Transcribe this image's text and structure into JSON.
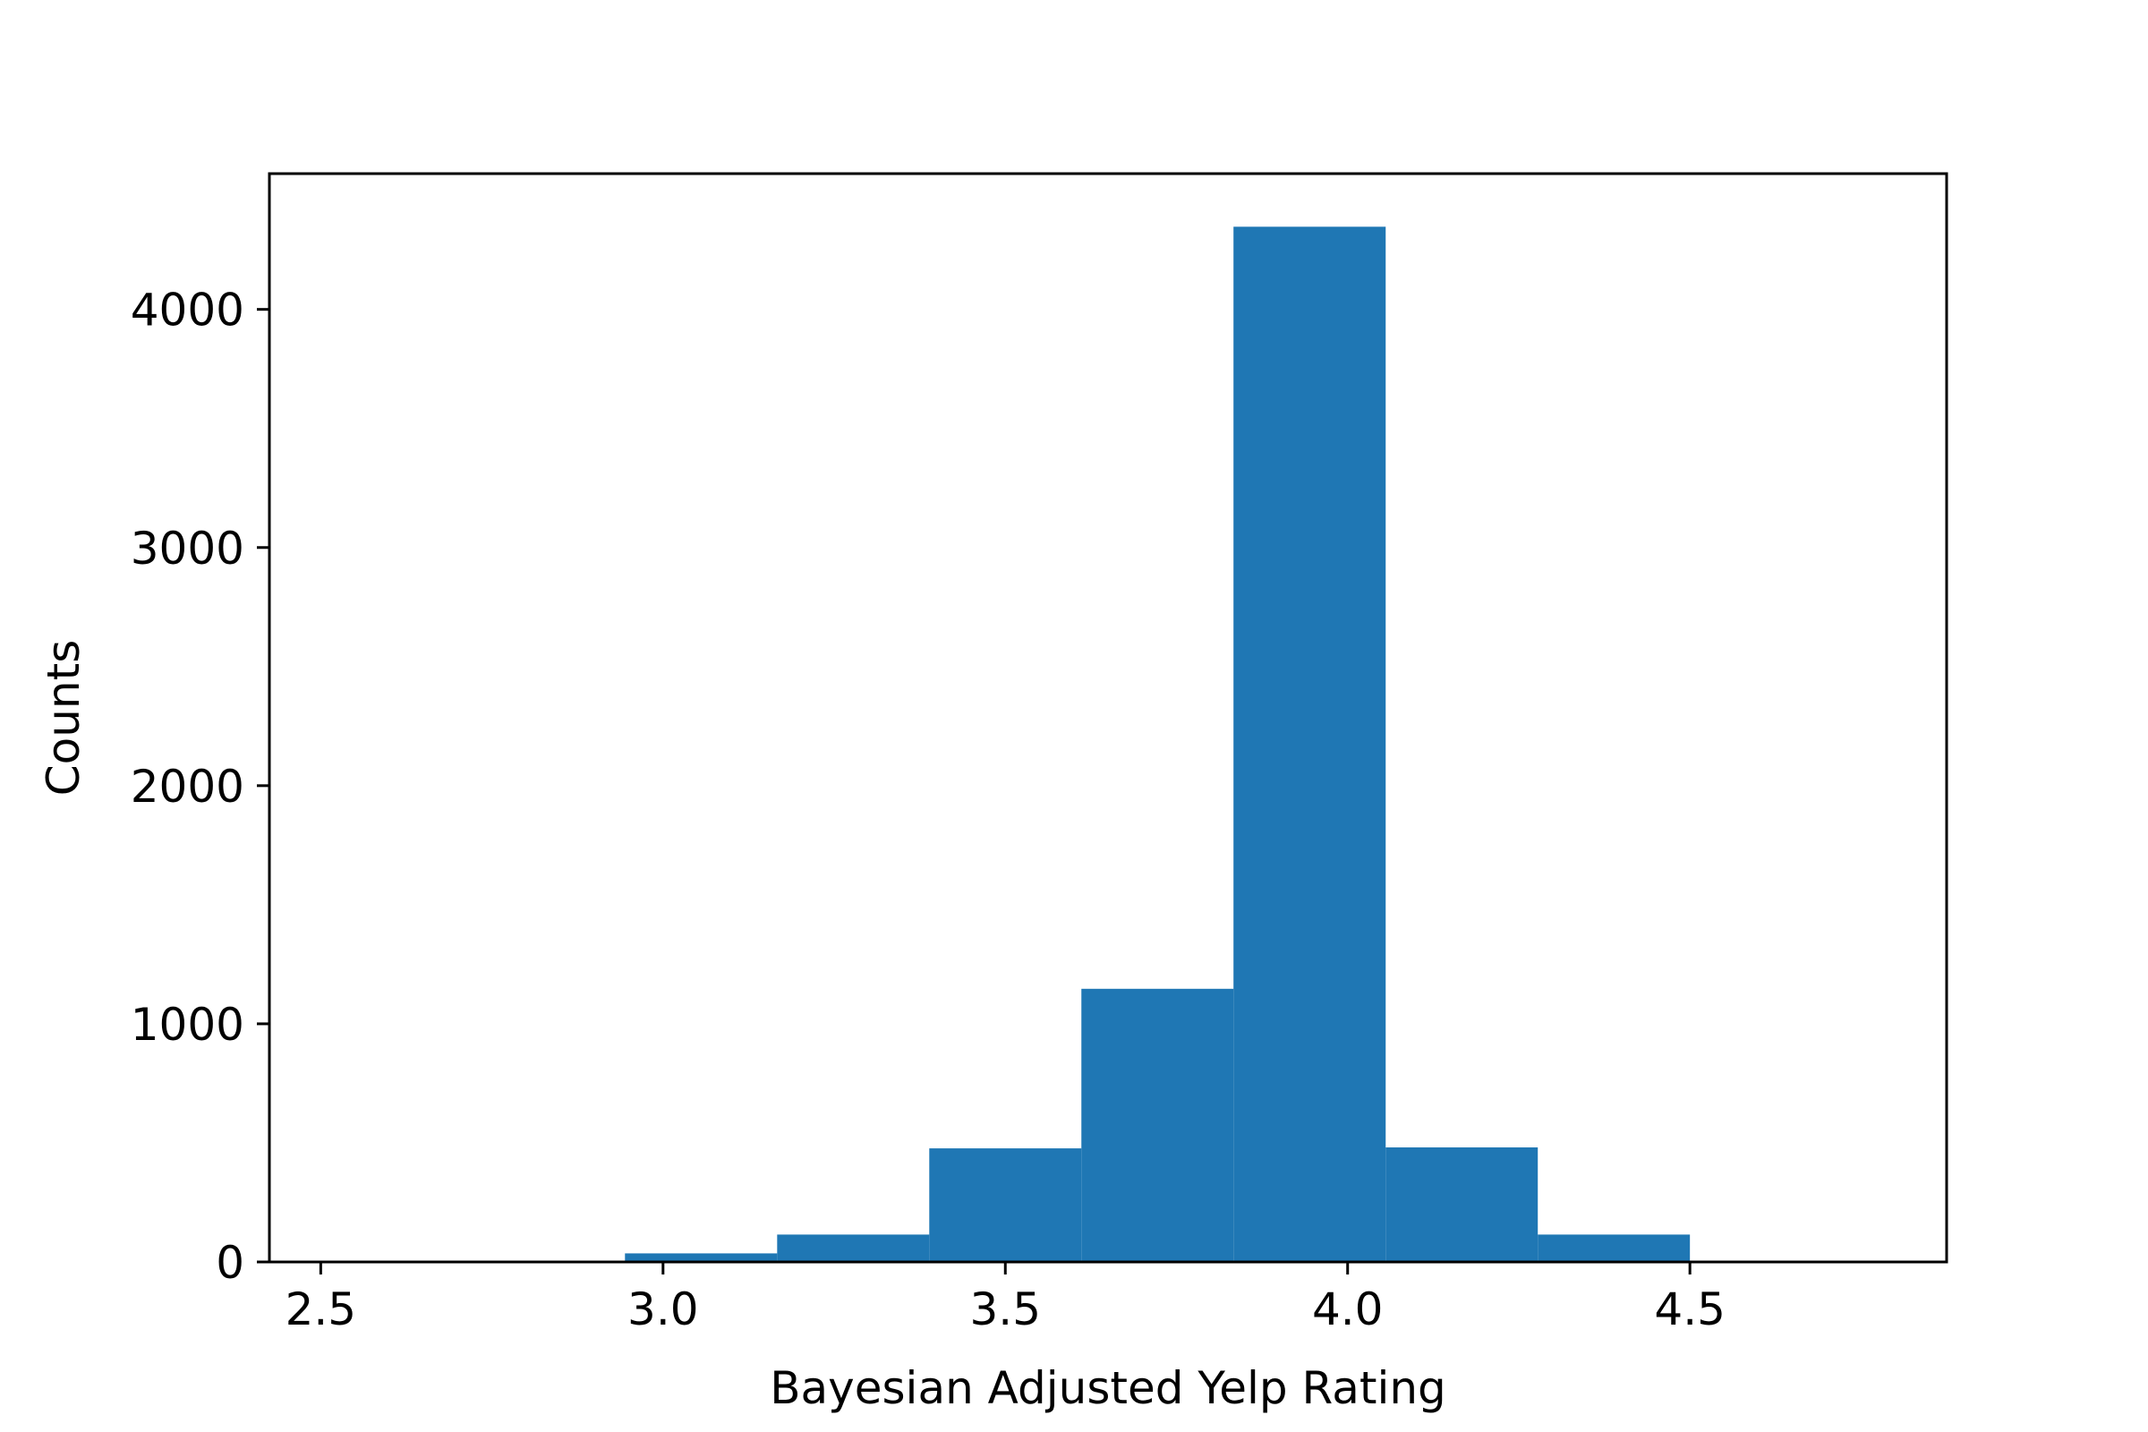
{
  "chart_data": {
    "type": "bar",
    "title": "",
    "xlabel": "Bayesian Adjusted Yelp Rating",
    "ylabel": "Counts",
    "xlim": [
      2.425,
      4.875
    ],
    "ylim": [
      0,
      4570
    ],
    "grid": false,
    "bar_color": "#1f77b4",
    "bins": [
      {
        "x0": 2.5,
        "x1": 2.7222,
        "count": 0
      },
      {
        "x0": 2.7222,
        "x1": 2.9444,
        "count": 0
      },
      {
        "x0": 2.9444,
        "x1": 3.1667,
        "count": 36
      },
      {
        "x0": 3.1667,
        "x1": 3.3889,
        "count": 115
      },
      {
        "x0": 3.3889,
        "x1": 3.6111,
        "count": 477
      },
      {
        "x0": 3.6111,
        "x1": 3.8333,
        "count": 1147
      },
      {
        "x0": 3.8333,
        "x1": 4.0556,
        "count": 4347
      },
      {
        "x0": 4.0556,
        "x1": 4.2778,
        "count": 481
      },
      {
        "x0": 4.2778,
        "x1": 4.5,
        "count": 115
      }
    ],
    "x_ticks": [
      {
        "value": 2.5,
        "label": "2.5"
      },
      {
        "value": 3.0,
        "label": "3.0"
      },
      {
        "value": 3.5,
        "label": "3.5"
      },
      {
        "value": 4.0,
        "label": "4.0"
      },
      {
        "value": 4.5,
        "label": "4.5"
      }
    ],
    "y_ticks": [
      {
        "value": 0,
        "label": "0"
      },
      {
        "value": 1000,
        "label": "1000"
      },
      {
        "value": 2000,
        "label": "2000"
      },
      {
        "value": 3000,
        "label": "3000"
      },
      {
        "value": 4000,
        "label": "4000"
      }
    ]
  }
}
